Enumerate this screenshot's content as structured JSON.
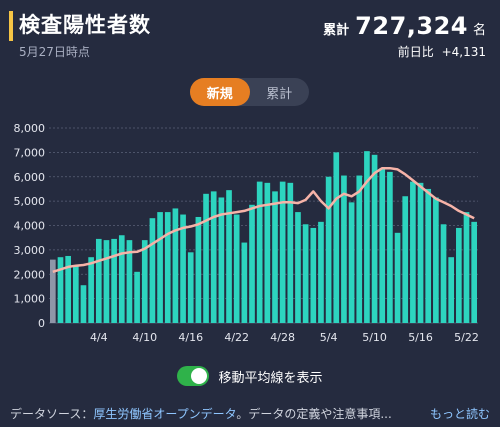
{
  "header": {
    "title": "検査陽性者数",
    "date": "5月27日時点",
    "total_label": "累計",
    "total_value": "727,324",
    "total_unit": "名",
    "diff_label": "前日比",
    "diff_value": "+4,131"
  },
  "tabs": {
    "new": "新規",
    "cumulative": "累計"
  },
  "toggle": {
    "label": "移動平均線を表示",
    "on": true
  },
  "footer": {
    "prefix": "データソース：",
    "source": "厚生労働省オープンデータ",
    "suffix": "。データの定義や注意事項...",
    "more": "もっと読む"
  },
  "colors": {
    "bar": "#2dd4bf",
    "bar_first": "#8f96a8",
    "line": "#f6b3a8",
    "accent": "#e67e22",
    "title_bar": "#f5c445"
  },
  "chart_data": {
    "type": "bar",
    "start_date": "3/29",
    "x_tick_labels": [
      "4/4",
      "4/10",
      "4/16",
      "4/22",
      "4/28",
      "5/4",
      "5/10",
      "5/16",
      "5/22"
    ],
    "ylim": [
      0,
      8000
    ],
    "y_ticks": [
      "0",
      "1,000",
      "2,000",
      "3,000",
      "4,000",
      "5,000",
      "6,000",
      "7,000",
      "8,000"
    ],
    "grid": true,
    "series": [
      {
        "values": [
          2600,
          2700,
          2750,
          2350,
          1550,
          2700,
          3450,
          3400,
          3450,
          3600,
          3400,
          2100,
          3400,
          4300,
          4550,
          4550,
          4700,
          4450,
          2900,
          4350,
          5300,
          5400,
          5150,
          5450,
          4450,
          3300,
          4850,
          5800,
          5750,
          5400,
          5800,
          5750,
          4550,
          4050,
          3900,
          4150,
          6000,
          7000,
          6050,
          4950,
          6050,
          7050,
          6900,
          6350,
          6200,
          3700,
          5200,
          5800,
          5750,
          5500,
          5150,
          4050,
          2700,
          3900,
          4550,
          4150
        ]
      },
      {
        "values": [
          2100,
          2200,
          2300,
          2350,
          2380,
          2450,
          2550,
          2650,
          2750,
          2850,
          2900,
          2920,
          3050,
          3250,
          3450,
          3650,
          3800,
          3900,
          3960,
          4050,
          4200,
          4350,
          4450,
          4500,
          4550,
          4600,
          4700,
          4800,
          4850,
          4900,
          4950,
          4950,
          4920,
          5050,
          5400,
          5000,
          4700,
          5100,
          5300,
          5200,
          5400,
          5800,
          6150,
          6350,
          6350,
          6300,
          6100,
          5850,
          5600,
          5350,
          5100,
          4950,
          4800,
          4600,
          4450,
          4300
        ]
      }
    ]
  }
}
